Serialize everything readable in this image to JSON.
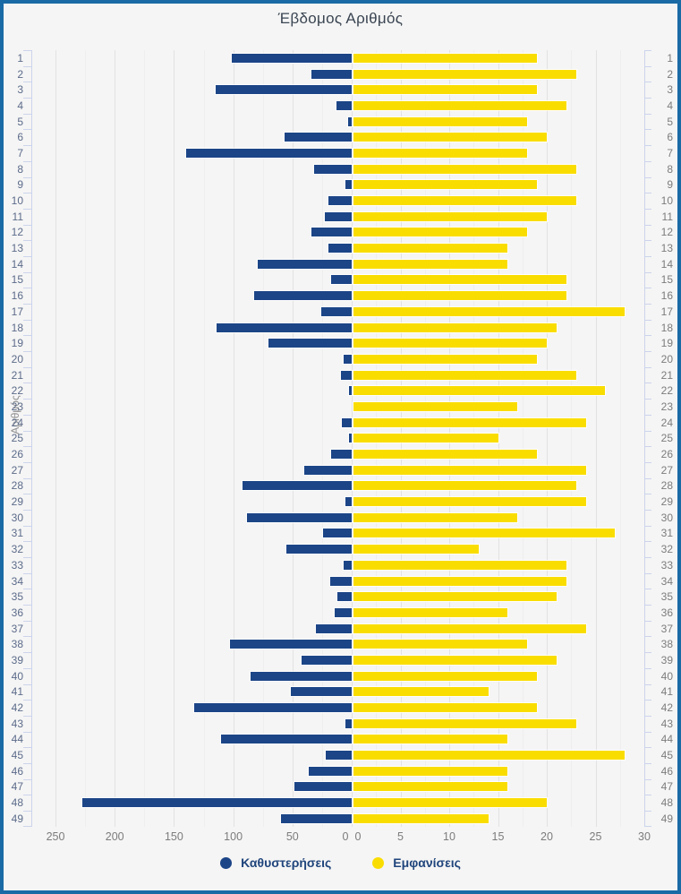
{
  "page": {
    "title": "Έβδομος Αριθμός"
  },
  "axes": {
    "y_title": "Αριθμός",
    "left_axis_ticks": [
      250,
      200,
      150,
      100,
      50,
      0
    ],
    "right_axis_ticks": [
      0,
      5,
      10,
      15,
      20,
      25,
      30
    ]
  },
  "legend": {
    "items": [
      {
        "label": "Καθυστερήσεις",
        "color": "#1c4587"
      },
      {
        "label": "Εμφανίσεις",
        "color": "#fadd00"
      }
    ]
  },
  "colors": {
    "frame": "#1a6aa5",
    "background": "#f5f5f5",
    "delay_bar": "#1c4587",
    "appearance_bar": "#fadd00",
    "gridline": "#e2e2e2",
    "axis_bracket": "#ccd4ec",
    "category_label_left": "#5c6b8a",
    "category_label_right": "#7c7c7c"
  },
  "chart_data": {
    "type": "bar",
    "orientation": "horizontal-diverging",
    "title": "Έβδομος Αριθμός",
    "ylabel": "Αριθμός",
    "grid": true,
    "legend_position": "bottom",
    "categories": [
      1,
      2,
      3,
      4,
      5,
      6,
      7,
      8,
      9,
      10,
      11,
      12,
      13,
      14,
      15,
      16,
      17,
      18,
      19,
      20,
      21,
      22,
      23,
      24,
      25,
      26,
      27,
      28,
      29,
      30,
      31,
      32,
      33,
      34,
      35,
      36,
      37,
      38,
      39,
      40,
      41,
      42,
      43,
      44,
      45,
      46,
      47,
      48,
      49
    ],
    "series": [
      {
        "name": "Καθυστερήσεις",
        "side": "left",
        "color": "#1c4587",
        "axis_range": [
          0,
          250
        ],
        "values": [
          101,
          34,
          115,
          13,
          3,
          57,
          140,
          32,
          5,
          20,
          23,
          34,
          20,
          79,
          17,
          82,
          26,
          114,
          70,
          7,
          9,
          2,
          0,
          8,
          2,
          17,
          40,
          92,
          5,
          88,
          24,
          55,
          7,
          18,
          12,
          14,
          30,
          103,
          42,
          85,
          51,
          133,
          5,
          110,
          22,
          36,
          48,
          227,
          60
        ]
      },
      {
        "name": "Εμφανίσεις",
        "side": "right",
        "color": "#fadd00",
        "axis_range": [
          0,
          30
        ],
        "values": [
          19,
          23,
          19,
          22,
          18,
          20,
          18,
          23,
          19,
          23,
          20,
          18,
          16,
          16,
          22,
          22,
          28,
          21,
          20,
          19,
          23,
          26,
          17,
          24,
          15,
          19,
          24,
          23,
          24,
          17,
          27,
          13,
          22,
          22,
          21,
          16,
          24,
          18,
          21,
          19,
          14,
          19,
          23,
          16,
          28,
          16,
          16,
          20,
          14
        ]
      }
    ]
  }
}
